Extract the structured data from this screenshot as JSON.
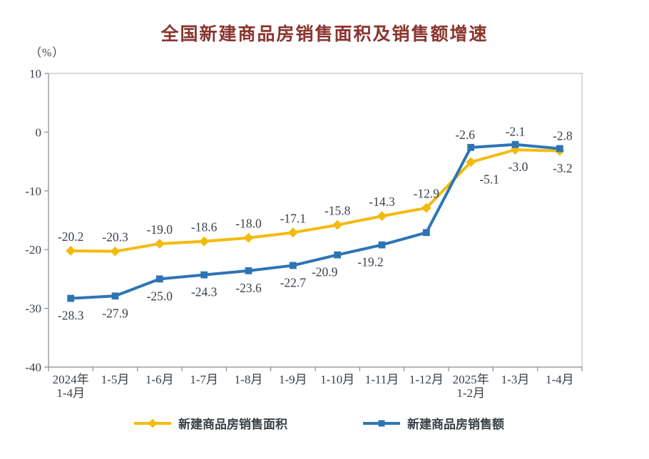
{
  "title": "全国新建商品房销售面积及销售额增速",
  "unit_label": "（%）",
  "colors": {
    "title": "#8A3530",
    "axis_text": "#3A4149",
    "plot_border": "#D0D0D0",
    "axis_line": "#9B9B9B",
    "tick": "#8C8C8C",
    "background": "#FFFFFF"
  },
  "chart_data": {
    "type": "line",
    "title": "全国新建商品房销售面积及销售额增速",
    "ylabel": "（%）",
    "ylim": [
      -40,
      10
    ],
    "y_ticks": [
      10,
      0,
      -10,
      -20,
      -30,
      -40
    ],
    "grid": false,
    "legend_position": "bottom",
    "categories": [
      "2024年1-4月",
      "1-5月",
      "1-6月",
      "1-7月",
      "1-8月",
      "1-9月",
      "1-10月",
      "1-11月",
      "1-12月",
      "2025年1-2月",
      "1-3月",
      "1-4月"
    ],
    "x_labels": [
      [
        "2024年",
        "1-4月"
      ],
      [
        "1-5月"
      ],
      [
        "1-6月"
      ],
      [
        "1-7月"
      ],
      [
        "1-8月"
      ],
      [
        "1-9月"
      ],
      [
        "1-10月"
      ],
      [
        "1-11月"
      ],
      [
        "1-12月"
      ],
      [
        "2025年",
        "1-2月"
      ],
      [
        "1-3月"
      ],
      [
        "1-4月"
      ]
    ],
    "series": [
      {
        "name": "新建商品房销售面积",
        "color": "#F3BB0F",
        "marker": "diamond",
        "values": [
          -20.2,
          -20.3,
          -19.0,
          -18.6,
          -18.0,
          -17.1,
          -15.8,
          -14.3,
          -12.9,
          -5.1,
          -3.0,
          -3.2
        ],
        "labels": [
          "-20.2",
          "-20.3",
          "-19.0",
          "-18.6",
          "-18.0",
          "-17.1",
          "-15.8",
          "-14.3",
          "-12.9",
          "-5.1",
          "-3.0",
          "-3.2"
        ],
        "label_sides": [
          "above",
          "above",
          "above",
          "above",
          "above",
          "above",
          "above",
          "above",
          "above",
          "below",
          "below",
          "below"
        ],
        "label_dx": [
          0,
          0,
          0,
          0,
          0,
          0,
          0,
          0,
          0,
          26,
          4,
          4
        ]
      },
      {
        "name": "新建商品房销售额",
        "color": "#2E74B5",
        "marker": "square",
        "values": [
          -28.3,
          -27.9,
          -25.0,
          -24.3,
          -23.6,
          -22.7,
          -20.9,
          -19.2,
          -17.1,
          -2.6,
          -2.1,
          -2.8
        ],
        "labels": [
          "-28.3",
          "-27.9",
          "-25.0",
          "-24.3",
          "-23.6",
          "-22.7",
          "-20.9",
          "-19.2",
          null,
          "-2.6",
          "-2.1",
          "-2.8"
        ],
        "label_sides": [
          "below",
          "below",
          "below",
          "below",
          "below",
          "below",
          "below",
          "below",
          "none",
          "above",
          "above",
          "above"
        ],
        "label_dx": [
          0,
          0,
          0,
          0,
          0,
          0,
          -18,
          -16,
          0,
          -8,
          0,
          4
        ]
      }
    ]
  },
  "legend": {
    "items": [
      {
        "label": "新建商品房销售面积"
      },
      {
        "label": "新建商品房销售额"
      }
    ]
  }
}
